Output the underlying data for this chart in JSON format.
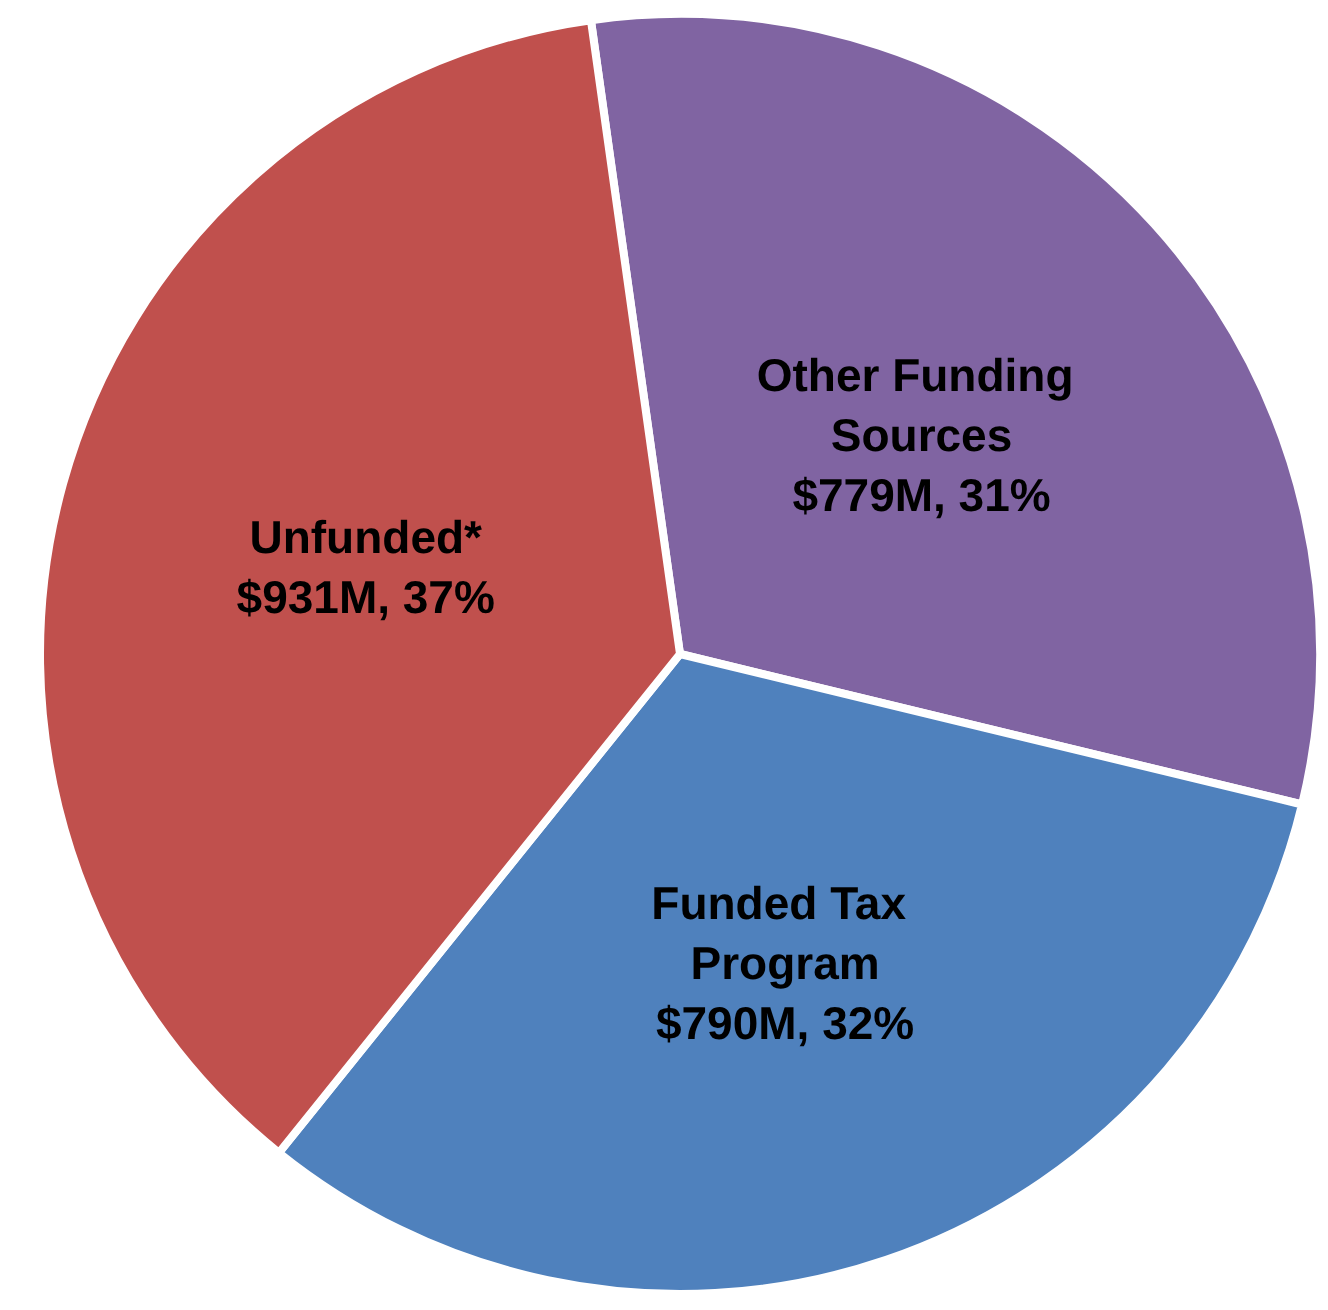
{
  "chart_data": {
    "type": "pie",
    "categories": [
      "Other Funding Sources",
      "Funded Tax Program",
      "Unfunded*"
    ],
    "values": [
      31,
      32,
      37
    ],
    "value_labels": [
      "$779M, 31%",
      "$790M, 32%",
      "$931M, 37%"
    ],
    "colors": [
      "#8064a2",
      "#4f81bd",
      "#c0504d"
    ]
  }
}
